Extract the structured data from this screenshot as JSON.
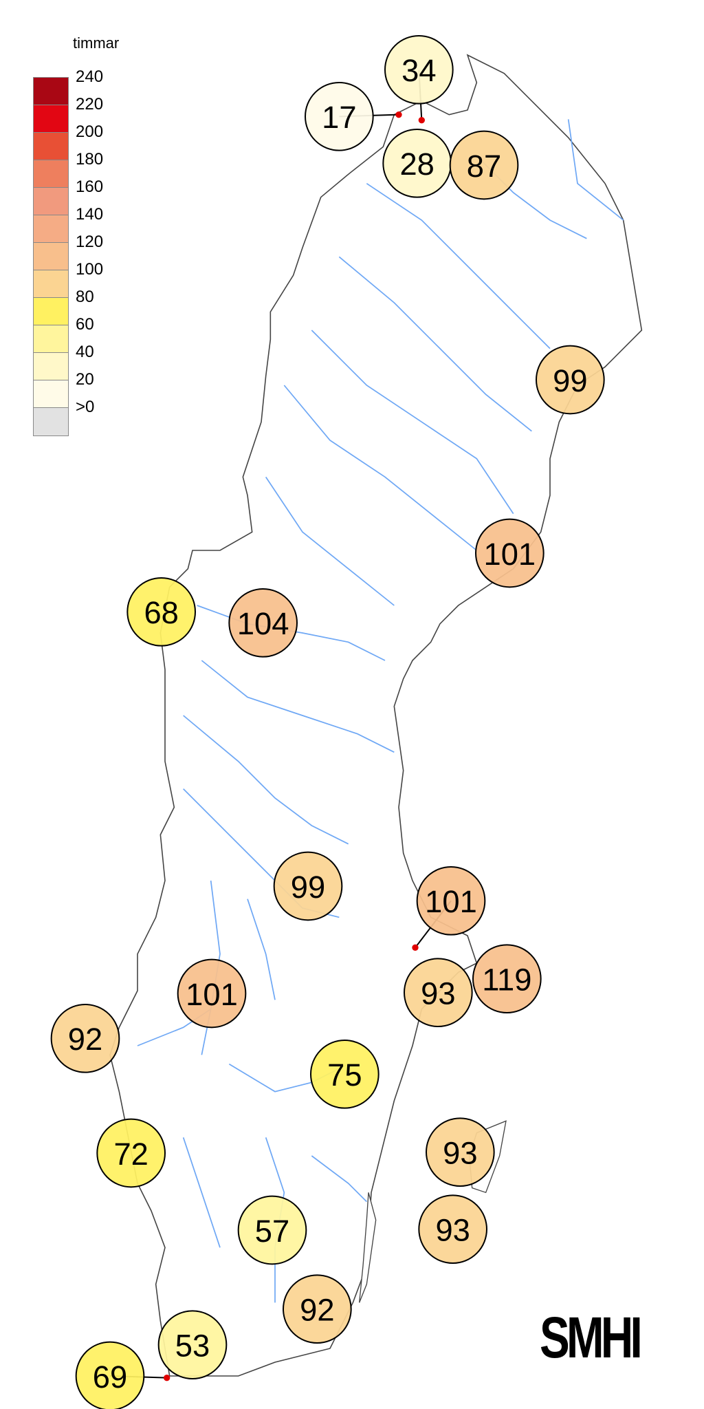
{
  "legend": {
    "title": "timmar",
    "labels": [
      "240",
      "220",
      "200",
      "180",
      "160",
      "140",
      "120",
      "100",
      "80",
      "60",
      "40",
      "20",
      ">0"
    ],
    "colors": [
      "#a90714",
      "#e20613",
      "#e85035",
      "#ee7f5e",
      "#f19a7e",
      "#f5ac85",
      "#f8bf8c",
      "#fbd492",
      "#fff161",
      "#fff59d",
      "#fff8c9",
      "#fffbe8",
      "#e2e2e2"
    ],
    "bins": [
      240,
      220,
      200,
      180,
      160,
      140,
      120,
      100,
      80,
      60,
      40,
      20,
      0
    ]
  },
  "stations": [
    {
      "value": 34
    },
    {
      "value": 17
    },
    {
      "value": 28
    },
    {
      "value": 87
    },
    {
      "value": 99
    },
    {
      "value": 101
    },
    {
      "value": 68
    },
    {
      "value": 104
    },
    {
      "value": 99
    },
    {
      "value": 101
    },
    {
      "value": 93
    },
    {
      "value": 119
    },
    {
      "value": 101
    },
    {
      "value": 92
    },
    {
      "value": 75
    },
    {
      "value": 72
    },
    {
      "value": 93
    },
    {
      "value": 93
    },
    {
      "value": 57
    },
    {
      "value": 92
    },
    {
      "value": 53
    },
    {
      "value": 69
    }
  ],
  "colors": {
    "border": "#444444",
    "river": "#6fa8f5",
    "marker": "#e00000"
  },
  "logo": {
    "text": "SMHI"
  }
}
